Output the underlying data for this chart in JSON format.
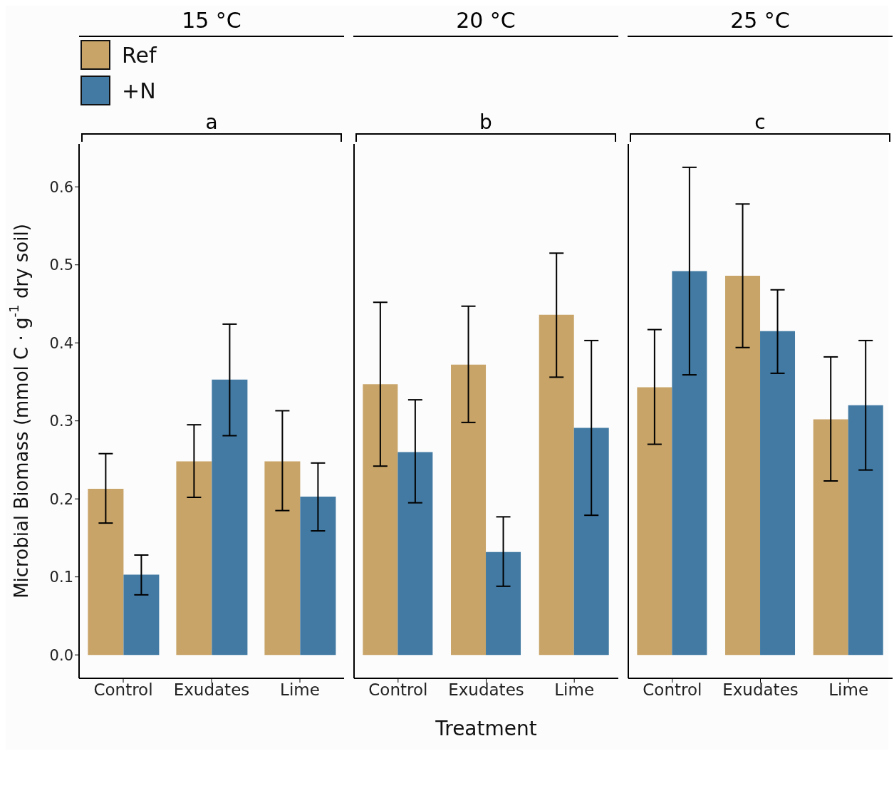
{
  "chart_data": [
    {
      "type": "bar",
      "title": "15 °C",
      "ylabel": "Microbial Biomass (mmol C · g$^{-1}$ dry soil)",
      "categories": [
        "Control",
        "Exudates",
        "Lime"
      ],
      "ylim": [
        -0.03,
        0.655
      ],
      "yticks": [
        {
          "value": 0,
          "label": "0.0"
        },
        0.1,
        0.2,
        0.3,
        0.4,
        0.5,
        0.6
      ],
      "legend": "top left",
      "annotations": [
        "a"
      ],
      "series": [
        {
          "name": "Ref",
          "color": "#c8a468",
          "values": [
            0.213,
            0.248,
            0.248
          ],
          "errors": [
            [
              0.169,
              0.258
            ],
            [
              0.202,
              0.295
            ],
            [
              0.185,
              0.313
            ]
          ]
        },
        {
          "name": "+N",
          "color": "#427aa3",
          "values": [
            0.103,
            0.353,
            0.203
          ],
          "errors": [
            [
              0.077,
              0.128
            ],
            [
              0.281,
              0.424
            ],
            [
              0.159,
              0.246
            ]
          ]
        }
      ]
    },
    {
      "type": "bar",
      "title": "20 °C",
      "xlabel": "Treatment",
      "categories": [
        "Control",
        "Exudates",
        "Lime"
      ],
      "ylim": [
        -0.03,
        0.655
      ],
      "tick_labels": "x",
      "annotations": [
        "b"
      ],
      "series": [
        {
          "color": "#c8a468",
          "values": [
            0.347,
            0.372,
            0.436
          ],
          "errors": [
            [
              0.242,
              0.452
            ],
            [
              0.298,
              0.447
            ],
            [
              0.356,
              0.515
            ]
          ]
        },
        {
          "color": "#427aa3",
          "values": [
            0.26,
            0.132,
            0.291
          ],
          "errors": [
            [
              0.195,
              0.327
            ],
            [
              0.088,
              0.177
            ],
            [
              0.179,
              0.403
            ]
          ]
        }
      ]
    },
    {
      "type": "bar",
      "title": "25 °C",
      "categories": [
        "Control",
        "Exudates",
        "Lime"
      ],
      "ylim": [
        -0.03,
        0.655
      ],
      "tick_labels": "x",
      "annotations": [
        "c"
      ],
      "series": [
        {
          "color": "#c8a468",
          "values": [
            0.343,
            0.486,
            0.302
          ],
          "errors": [
            [
              0.27,
              0.417
            ],
            [
              0.394,
              0.578
            ],
            [
              0.223,
              0.382
            ]
          ]
        },
        {
          "color": "#427aa3",
          "values": [
            0.492,
            0.415,
            0.32
          ],
          "errors": [
            [
              0.359,
              0.625
            ],
            [
              0.361,
              0.468
            ],
            [
              0.237,
              0.403
            ]
          ]
        }
      ]
    }
  ]
}
